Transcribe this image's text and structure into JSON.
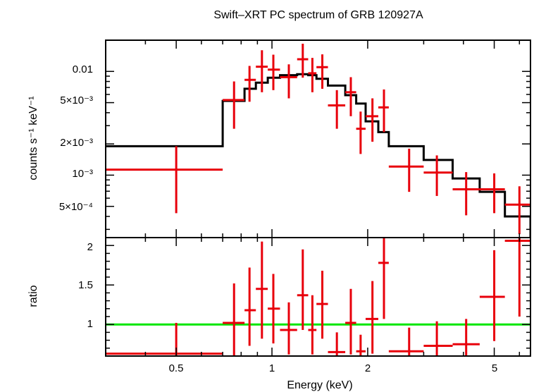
{
  "chart_data": [
    {
      "type": "scatter",
      "panel": "spectrum",
      "title": "Swift–XRT PC spectrum of GRB 120927A",
      "ylabel": "counts s⁻¹ keV⁻¹",
      "xscale": "log",
      "yscale": "log",
      "xlim": [
        0.3,
        6.5
      ],
      "ylim": [
        0.00025,
        0.02
      ],
      "ytick_labels": [
        "0.01",
        "5×10⁻³",
        "2×10⁻³",
        "10⁻³",
        "5×10⁻⁴"
      ],
      "colors": {
        "data": "#e8000b",
        "model": "#000000"
      },
      "series": [
        {
          "kind": "data",
          "points": [
            {
              "x": 0.5,
              "xlo": 0.3,
              "xhi": 0.7,
              "y": 0.00113,
              "ylo": 0.00043,
              "yhi": 0.0019
            },
            {
              "x": 0.76,
              "xlo": 0.7,
              "xhi": 0.82,
              "y": 0.0053,
              "ylo": 0.0028,
              "yhi": 0.008
            },
            {
              "x": 0.85,
              "xlo": 0.82,
              "xhi": 0.89,
              "y": 0.0083,
              "ylo": 0.0051,
              "yhi": 0.0113
            },
            {
              "x": 0.93,
              "xlo": 0.89,
              "xhi": 0.97,
              "y": 0.0111,
              "ylo": 0.0063,
              "yhi": 0.016
            },
            {
              "x": 1.01,
              "xlo": 0.97,
              "xhi": 1.06,
              "y": 0.0104,
              "ylo": 0.0066,
              "yhi": 0.0145
            },
            {
              "x": 1.13,
              "xlo": 1.06,
              "xhi": 1.2,
              "y": 0.0088,
              "ylo": 0.0055,
              "yhi": 0.0117
            },
            {
              "x": 1.25,
              "xlo": 1.2,
              "xhi": 1.3,
              "y": 0.0131,
              "ylo": 0.0087,
              "yhi": 0.0185
            },
            {
              "x": 1.34,
              "xlo": 1.3,
              "xhi": 1.38,
              "y": 0.0096,
              "ylo": 0.0063,
              "yhi": 0.0135
            },
            {
              "x": 1.44,
              "xlo": 1.38,
              "xhi": 1.5,
              "y": 0.011,
              "ylo": 0.0068,
              "yhi": 0.0146
            },
            {
              "x": 1.6,
              "xlo": 1.5,
              "xhi": 1.7,
              "y": 0.0047,
              "ylo": 0.0028,
              "yhi": 0.0066
            },
            {
              "x": 1.77,
              "xlo": 1.7,
              "xhi": 1.84,
              "y": 0.0063,
              "ylo": 0.0037,
              "yhi": 0.0088
            },
            {
              "x": 1.9,
              "xlo": 1.84,
              "xhi": 1.97,
              "y": 0.0028,
              "ylo": 0.0016,
              "yhi": 0.0041
            },
            {
              "x": 2.07,
              "xlo": 1.97,
              "xhi": 2.16,
              "y": 0.0037,
              "ylo": 0.0021,
              "yhi": 0.0055
            },
            {
              "x": 2.25,
              "xlo": 2.16,
              "xhi": 2.33,
              "y": 0.0045,
              "ylo": 0.0026,
              "yhi": 0.0067
            },
            {
              "x": 2.7,
              "xlo": 2.33,
              "xhi": 3.0,
              "y": 0.00121,
              "ylo": 0.00069,
              "yhi": 0.0018
            },
            {
              "x": 3.3,
              "xlo": 3.0,
              "xhi": 3.7,
              "y": 0.00106,
              "ylo": 0.00063,
              "yhi": 0.00155
            },
            {
              "x": 4.08,
              "xlo": 3.7,
              "xhi": 4.5,
              "y": 0.00073,
              "ylo": 0.00041,
              "yhi": 0.00107
            },
            {
              "x": 5.0,
              "xlo": 4.5,
              "xhi": 5.4,
              "y": 0.00073,
              "ylo": 0.00043,
              "yhi": 0.00104
            },
            {
              "x": 6.0,
              "xlo": 5.4,
              "xhi": 6.5,
              "y": 0.00052,
              "ylo": 0.00027,
              "yhi": 0.00078
            }
          ]
        },
        {
          "kind": "model",
          "steps": [
            {
              "xlo": 0.3,
              "xhi": 0.7,
              "y": 0.0019
            },
            {
              "xlo": 0.7,
              "xhi": 0.82,
              "y": 0.0052
            },
            {
              "xlo": 0.82,
              "xhi": 0.89,
              "y": 0.0068
            },
            {
              "xlo": 0.89,
              "xhi": 0.97,
              "y": 0.0078
            },
            {
              "xlo": 0.97,
              "xhi": 1.06,
              "y": 0.0087
            },
            {
              "xlo": 1.06,
              "xhi": 1.2,
              "y": 0.0092
            },
            {
              "xlo": 1.2,
              "xhi": 1.3,
              "y": 0.0094
            },
            {
              "xlo": 1.3,
              "xhi": 1.38,
              "y": 0.0092
            },
            {
              "xlo": 1.38,
              "xhi": 1.5,
              "y": 0.0085
            },
            {
              "xlo": 1.5,
              "xhi": 1.7,
              "y": 0.0073
            },
            {
              "xlo": 1.7,
              "xhi": 1.84,
              "y": 0.0059
            },
            {
              "xlo": 1.84,
              "xhi": 1.97,
              "y": 0.0049
            },
            {
              "xlo": 1.97,
              "xhi": 2.16,
              "y": 0.0033
            },
            {
              "xlo": 2.16,
              "xhi": 2.33,
              "y": 0.0026
            },
            {
              "xlo": 2.33,
              "xhi": 3.0,
              "y": 0.0019
            },
            {
              "xlo": 3.0,
              "xhi": 3.7,
              "y": 0.0014
            },
            {
              "xlo": 3.7,
              "xhi": 4.5,
              "y": 0.00093
            },
            {
              "xlo": 4.5,
              "xhi": 5.4,
              "y": 0.00069
            },
            {
              "xlo": 5.4,
              "xhi": 6.5,
              "y": 0.0004
            }
          ]
        }
      ]
    },
    {
      "type": "scatter",
      "panel": "ratio",
      "xlabel": "Energy (keV)",
      "ylabel": "ratio",
      "xscale": "log",
      "yscale": "linear",
      "xlim": [
        0.3,
        6.5
      ],
      "ylim": [
        0.6,
        2.1
      ],
      "xtick_labels": [
        "0.5",
        "1",
        "2",
        "5"
      ],
      "ytick_labels": [
        "2",
        "1.5",
        "1"
      ],
      "reference_line": {
        "y": 1,
        "color": "#00e600"
      },
      "colors": {
        "data": "#e8000b"
      },
      "series": [
        {
          "kind": "data",
          "points": [
            {
              "x": 0.5,
              "xlo": 0.3,
              "xhi": 0.7,
              "y": 0.63,
              "ylo": 0.6,
              "yhi": 1.02
            },
            {
              "x": 0.76,
              "xlo": 0.7,
              "xhi": 0.82,
              "y": 1.02,
              "ylo": 0.6,
              "yhi": 1.52
            },
            {
              "x": 0.85,
              "xlo": 0.82,
              "xhi": 0.89,
              "y": 1.18,
              "ylo": 0.73,
              "yhi": 1.72
            },
            {
              "x": 0.93,
              "xlo": 0.89,
              "xhi": 0.97,
              "y": 1.45,
              "ylo": 0.82,
              "yhi": 2.05
            },
            {
              "x": 1.01,
              "xlo": 0.97,
              "xhi": 1.06,
              "y": 1.2,
              "ylo": 0.76,
              "yhi": 1.64
            },
            {
              "x": 1.13,
              "xlo": 1.06,
              "xhi": 1.2,
              "y": 0.93,
              "ylo": 0.62,
              "yhi": 1.28
            },
            {
              "x": 1.25,
              "xlo": 1.2,
              "xhi": 1.3,
              "y": 1.37,
              "ylo": 0.93,
              "yhi": 1.95
            },
            {
              "x": 1.34,
              "xlo": 1.3,
              "xhi": 1.38,
              "y": 0.93,
              "ylo": 0.62,
              "yhi": 1.37
            },
            {
              "x": 1.44,
              "xlo": 1.38,
              "xhi": 1.5,
              "y": 1.26,
              "ylo": 0.82,
              "yhi": 1.68
            },
            {
              "x": 1.6,
              "xlo": 1.5,
              "xhi": 1.7,
              "y": 0.65,
              "ylo": 0.6,
              "yhi": 0.9
            },
            {
              "x": 1.77,
              "xlo": 1.7,
              "xhi": 1.84,
              "y": 1.02,
              "ylo": 0.62,
              "yhi": 1.45
            },
            {
              "x": 1.9,
              "xlo": 1.84,
              "xhi": 1.97,
              "y": 0.66,
              "ylo": 0.6,
              "yhi": 0.87
            },
            {
              "x": 2.07,
              "xlo": 1.97,
              "xhi": 2.16,
              "y": 1.07,
              "ylo": 0.63,
              "yhi": 1.55
            },
            {
              "x": 2.25,
              "xlo": 2.16,
              "xhi": 2.33,
              "y": 1.78,
              "ylo": 1.07,
              "yhi": 2.12
            },
            {
              "x": 2.7,
              "xlo": 2.33,
              "xhi": 3.0,
              "y": 0.66,
              "ylo": 0.6,
              "yhi": 0.96
            },
            {
              "x": 3.3,
              "xlo": 3.0,
              "xhi": 3.7,
              "y": 0.73,
              "ylo": 0.6,
              "yhi": 1.04
            },
            {
              "x": 4.08,
              "xlo": 3.7,
              "xhi": 4.5,
              "y": 0.75,
              "ylo": 0.6,
              "yhi": 1.07
            },
            {
              "x": 5.0,
              "xlo": 4.5,
              "xhi": 5.4,
              "y": 1.35,
              "ylo": 0.79,
              "yhi": 1.94
            },
            {
              "x": 6.0,
              "xlo": 5.4,
              "xhi": 6.5,
              "y": 2.06,
              "ylo": 1.1,
              "yhi": 2.12
            }
          ]
        }
      ]
    }
  ]
}
